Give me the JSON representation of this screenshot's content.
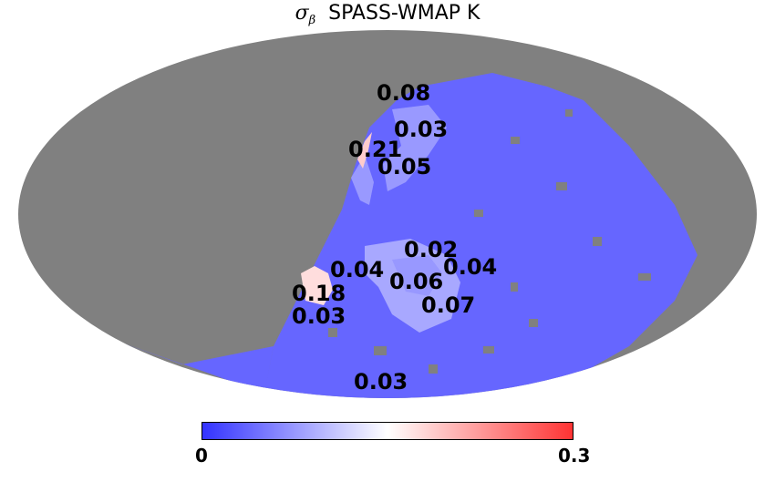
{
  "title": {
    "symbol": "σ",
    "subscript": "β",
    "text": "SPASS-WMAP K"
  },
  "colors": {
    "masked": "#808080",
    "low": "#6666ff",
    "mid": "#ffffff",
    "high": "#ff3333"
  },
  "colorbar": {
    "min_label": "0",
    "max_label": "0.3",
    "min": 0,
    "max": 0.3
  },
  "region_values": [
    "0.08",
    "0.03",
    "0.21",
    "0.05",
    "0.02",
    "0.04",
    "0.04",
    "0.06",
    "0.18",
    "0.07",
    "0.03",
    "0.03"
  ]
}
